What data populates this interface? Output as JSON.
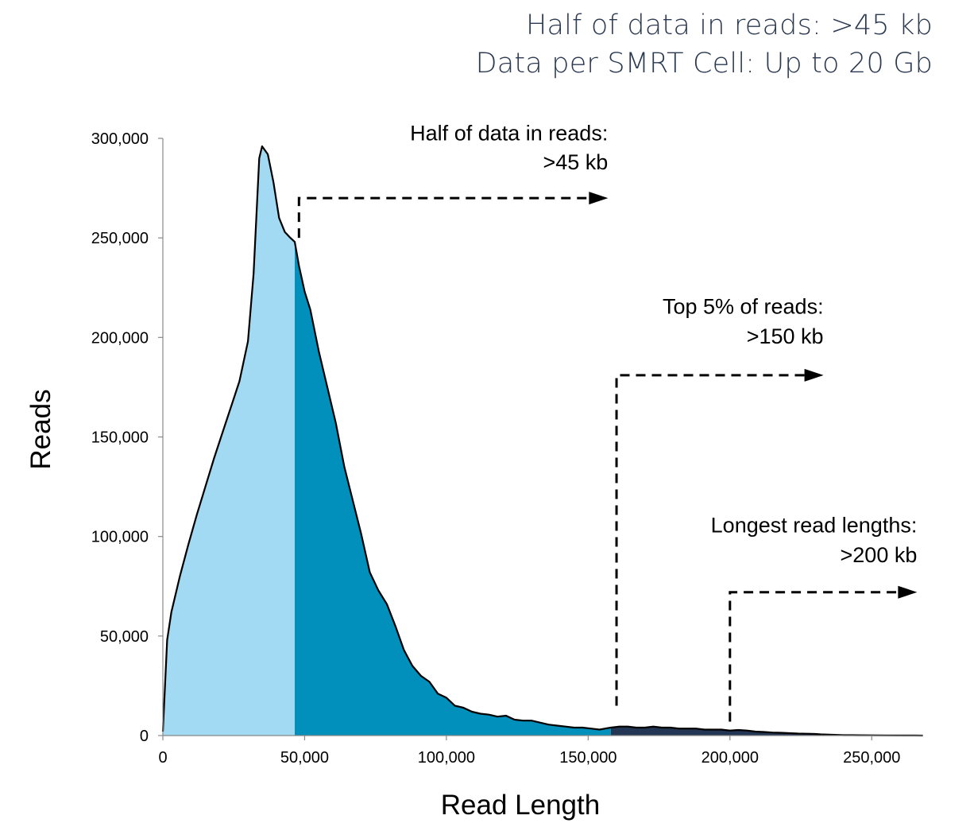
{
  "header": {
    "line1": "Half of data in reads: >45 kb",
    "line2": "Data per SMRT Cell: Up to 20 Gb"
  },
  "chart_data": {
    "type": "area",
    "title": "",
    "xlabel": "Read Length",
    "ylabel": "Reads",
    "xlim": [
      0,
      268000
    ],
    "ylim": [
      0,
      300000
    ],
    "grid": false,
    "x_ticks": [
      0,
      50000,
      100000,
      150000,
      200000,
      250000
    ],
    "x_tick_labels": [
      "0",
      "50,000",
      "100,000",
      "150,000",
      "200,000",
      "250,000"
    ],
    "y_ticks": [
      0,
      50000,
      100000,
      150000,
      200000,
      250000,
      300000
    ],
    "y_tick_labels": [
      "0",
      "50,000",
      "100,000",
      "150,000",
      "200,000",
      "250,000",
      "300,000"
    ],
    "colors": {
      "low": "#a2d9f3",
      "mid": "#0090bb",
      "high": "#233653",
      "outline": "#000000"
    },
    "region_boundaries": [
      46500,
      158000
    ],
    "x": [
      0,
      1500,
      3000,
      6000,
      9000,
      12000,
      15000,
      18000,
      21000,
      24000,
      27000,
      30000,
      32000,
      34000,
      35000,
      37000,
      39000,
      41000,
      43000,
      45000,
      46500,
      48000,
      50000,
      52000,
      55000,
      58000,
      61000,
      64000,
      67000,
      70000,
      73000,
      76000,
      79000,
      82000,
      85000,
      88000,
      91000,
      94000,
      97000,
      100000,
      103000,
      106000,
      109000,
      112000,
      115000,
      118000,
      121000,
      124000,
      127000,
      130000,
      133000,
      136000,
      139000,
      142000,
      145000,
      148000,
      151000,
      154000,
      156000,
      158000,
      161000,
      164000,
      167000,
      170000,
      173000,
      176000,
      179000,
      182000,
      185000,
      188000,
      191000,
      194000,
      197000,
      200000,
      203000,
      206000,
      209000,
      212000,
      215000,
      218000,
      221000,
      224000,
      227000,
      230000,
      232000,
      234000,
      236000,
      238000,
      240000,
      243000,
      246000,
      250000,
      255000,
      260000,
      265000,
      268000
    ],
    "y": [
      2000,
      48000,
      62000,
      80000,
      96000,
      111000,
      125000,
      139000,
      152000,
      165000,
      178000,
      198000,
      232000,
      290000,
      296000,
      292000,
      278000,
      260000,
      253000,
      250000,
      248000,
      236000,
      223000,
      214000,
      193000,
      175000,
      157000,
      135000,
      118000,
      101000,
      82000,
      73000,
      66000,
      55000,
      43000,
      35000,
      30000,
      27000,
      21000,
      19000,
      15000,
      14000,
      12000,
      11000,
      10500,
      9500,
      10000,
      8000,
      7500,
      7500,
      6500,
      5500,
      5000,
      4500,
      4000,
      4000,
      3500,
      3000,
      3500,
      4000,
      4500,
      4500,
      4000,
      4000,
      4500,
      4000,
      4000,
      3500,
      3500,
      3500,
      3000,
      3000,
      3000,
      2500,
      2800,
      2500,
      2000,
      1800,
      1500,
      1400,
      1200,
      1000,
      900,
      800,
      600,
      500,
      400,
      300,
      200,
      180,
      150,
      100,
      60,
      40,
      20,
      0
    ],
    "annotations": [
      {
        "line1": "Half of data in reads:",
        "line2": ">45 kb",
        "x": 48000,
        "y_start": 250000,
        "y_arrow": 270000,
        "x_end": 157000,
        "text_x": 157000,
        "text_y1": 299000,
        "text_y2": 284500
      },
      {
        "line1": "Top 5% of reads:",
        "line2": ">150 kb",
        "x": 160000,
        "y_start": 15000,
        "y_arrow": 181000,
        "x_end": 233000,
        "text_x": 233000,
        "text_y1": 212000,
        "text_y2": 197000
      },
      {
        "line1": "Longest read lengths:",
        "line2": ">200 kb",
        "x": 200000,
        "y_start": 7000,
        "y_arrow": 72000,
        "x_end": 266000,
        "text_x": 266000,
        "text_y1": 102000,
        "text_y2": 87000
      }
    ]
  }
}
